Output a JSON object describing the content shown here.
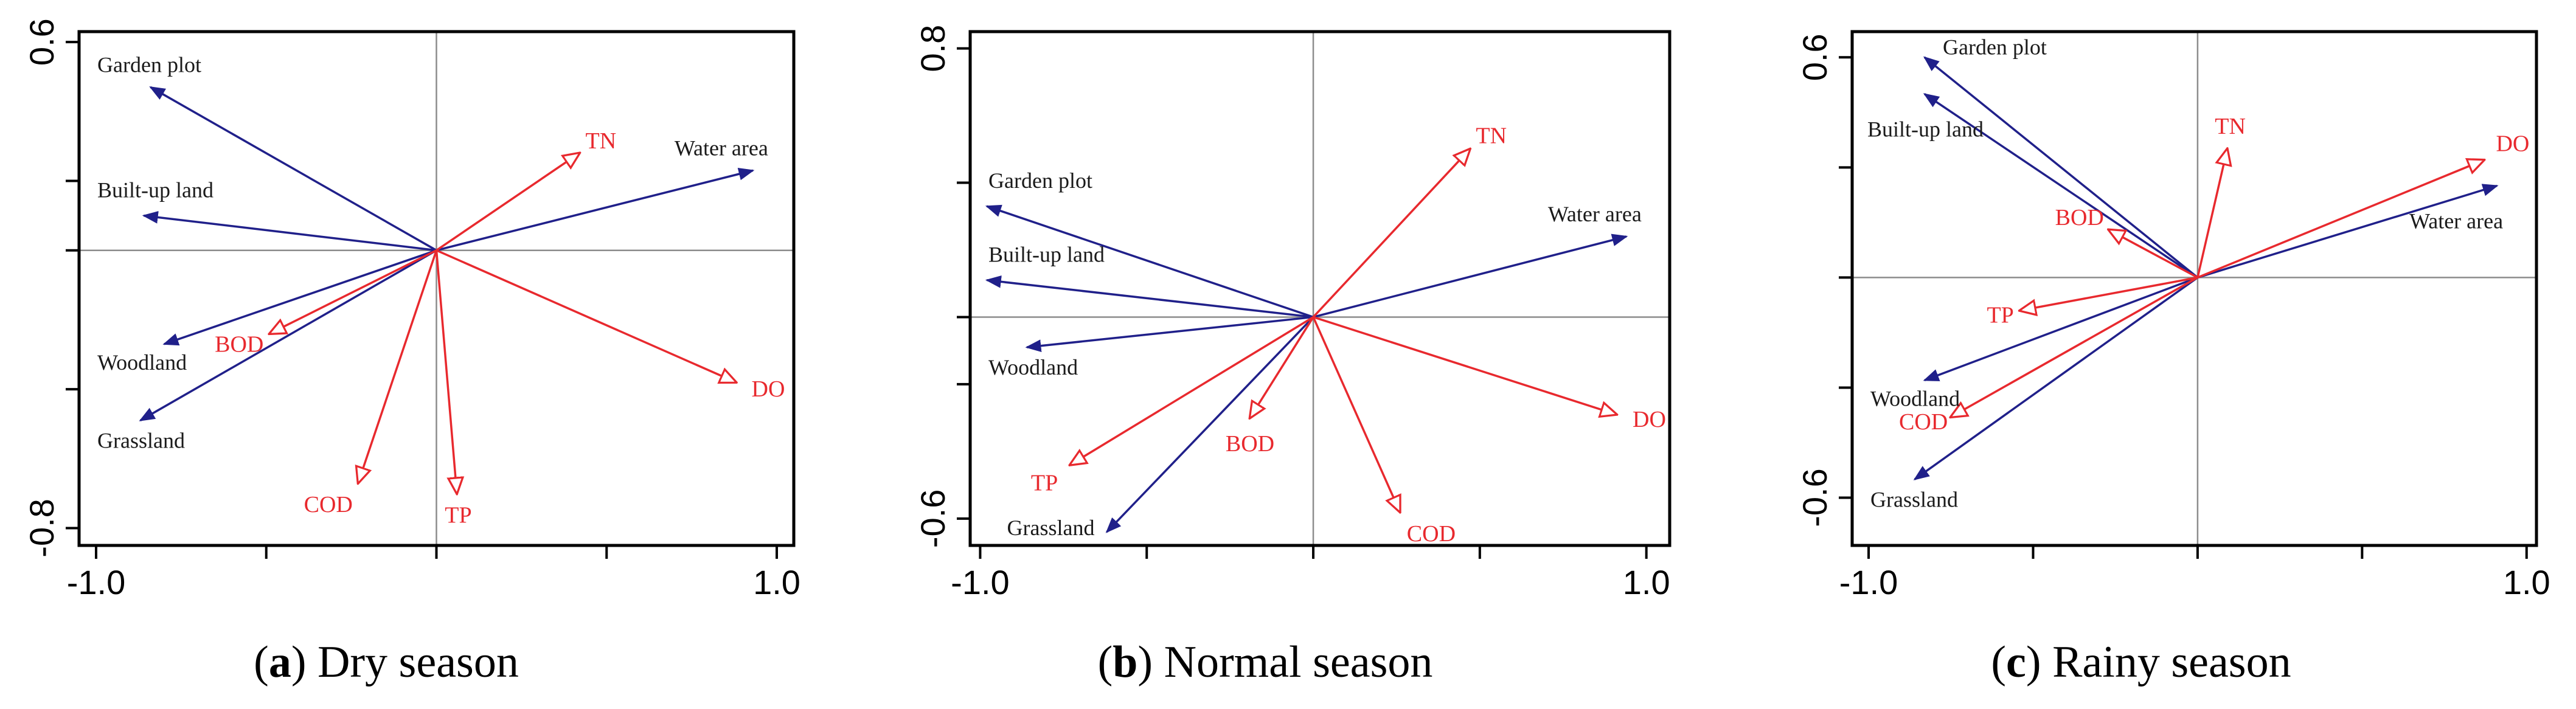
{
  "colors": {
    "species_arrow": "#20208a",
    "env_arrow": "#e8292e",
    "env_text": "#e8292e",
    "species_text": "#1a1a1a",
    "zero_line": "#8c8c8c"
  },
  "chart_data": [
    {
      "type": "biplot",
      "panel": "a",
      "caption_label": "a",
      "caption_text": "Dry season",
      "xlim": [
        -1.05,
        1.05
      ],
      "ylim": [
        -0.85,
        0.63
      ],
      "x_ticks": [
        {
          "value": -1.0,
          "label": "-1.0"
        },
        {
          "value": 1.0,
          "label": "1.0"
        }
      ],
      "y_ticks": [
        {
          "value": 0.6,
          "label": "0.6"
        },
        {
          "value": -0.8,
          "label": "-0.8"
        }
      ],
      "x_minor": [
        -0.5,
        0.5
      ],
      "y_minor": [
        -0.4,
        0.2
      ],
      "species": [
        {
          "name": "Garden plot",
          "x": -0.84,
          "y": 0.47
        },
        {
          "name": "Built-up land",
          "x": -0.86,
          "y": 0.1
        },
        {
          "name": "Woodland",
          "x": -0.8,
          "y": -0.27
        },
        {
          "name": "Grassland",
          "x": -0.87,
          "y": -0.49
        },
        {
          "name": "Water area",
          "x": 0.93,
          "y": 0.23
        }
      ],
      "environment": [
        {
          "name": "TN",
          "x": 0.42,
          "y": 0.28
        },
        {
          "name": "BOD",
          "x": -0.49,
          "y": -0.24
        },
        {
          "name": "COD",
          "x": -0.23,
          "y": -0.67
        },
        {
          "name": "TP",
          "x": 0.06,
          "y": -0.7
        },
        {
          "name": "DO",
          "x": 0.88,
          "y": -0.38
        }
      ]
    },
    {
      "type": "biplot",
      "panel": "b",
      "caption_label": "b",
      "caption_text": "Normal season",
      "xlim": [
        -1.03,
        1.07
      ],
      "ylim": [
        -0.68,
        0.85
      ],
      "x_ticks": [
        {
          "value": -1.0,
          "label": "-1.0"
        },
        {
          "value": 1.0,
          "label": "1.0"
        }
      ],
      "y_ticks": [
        {
          "value": 0.8,
          "label": "0.8"
        },
        {
          "value": -0.6,
          "label": "-0.6"
        }
      ],
      "x_minor": [
        -0.5,
        0.5
      ],
      "y_minor": [
        -0.2,
        0.4
      ],
      "species": [
        {
          "name": "Garden plot",
          "x": -0.98,
          "y": 0.33
        },
        {
          "name": "Built-up land",
          "x": -0.98,
          "y": 0.11
        },
        {
          "name": "Woodland",
          "x": -0.86,
          "y": -0.09
        },
        {
          "name": "Grassland",
          "x": -0.62,
          "y": -0.64
        },
        {
          "name": "Water area",
          "x": 0.94,
          "y": 0.24
        }
      ],
      "environment": [
        {
          "name": "TN",
          "x": 0.47,
          "y": 0.5
        },
        {
          "name": "BOD",
          "x": -0.19,
          "y": -0.3
        },
        {
          "name": "TP",
          "x": -0.73,
          "y": -0.44
        },
        {
          "name": "COD",
          "x": 0.26,
          "y": -0.58
        },
        {
          "name": "DO",
          "x": 0.91,
          "y": -0.29
        }
      ]
    },
    {
      "type": "biplot",
      "panel": "c",
      "caption_label": "c",
      "caption_text": "Rainy season",
      "xlim": [
        -1.05,
        1.03
      ],
      "ylim": [
        -0.73,
        0.67
      ],
      "x_ticks": [
        {
          "value": -1.0,
          "label": "-1.0"
        },
        {
          "value": 1.0,
          "label": "1.0"
        }
      ],
      "y_ticks": [
        {
          "value": 0.6,
          "label": "0.6"
        },
        {
          "value": -0.6,
          "label": "-0.6"
        }
      ],
      "x_minor": [
        -0.5,
        0.5
      ],
      "y_minor": [
        -0.3,
        0.3
      ],
      "species": [
        {
          "name": "Garden plot",
          "x": -0.83,
          "y": 0.6
        },
        {
          "name": "Built-up land",
          "x": -0.83,
          "y": 0.5
        },
        {
          "name": "Woodland",
          "x": -0.83,
          "y": -0.28
        },
        {
          "name": "Grassland",
          "x": -0.86,
          "y": -0.55
        },
        {
          "name": "Water area",
          "x": 0.91,
          "y": 0.25
        }
      ],
      "environment": [
        {
          "name": "TN",
          "x": 0.09,
          "y": 0.35
        },
        {
          "name": "BOD",
          "x": -0.27,
          "y": 0.13
        },
        {
          "name": "TP",
          "x": -0.54,
          "y": -0.09
        },
        {
          "name": "COD",
          "x": -0.75,
          "y": -0.38
        },
        {
          "name": "DO",
          "x": 0.87,
          "y": 0.32
        }
      ]
    }
  ]
}
